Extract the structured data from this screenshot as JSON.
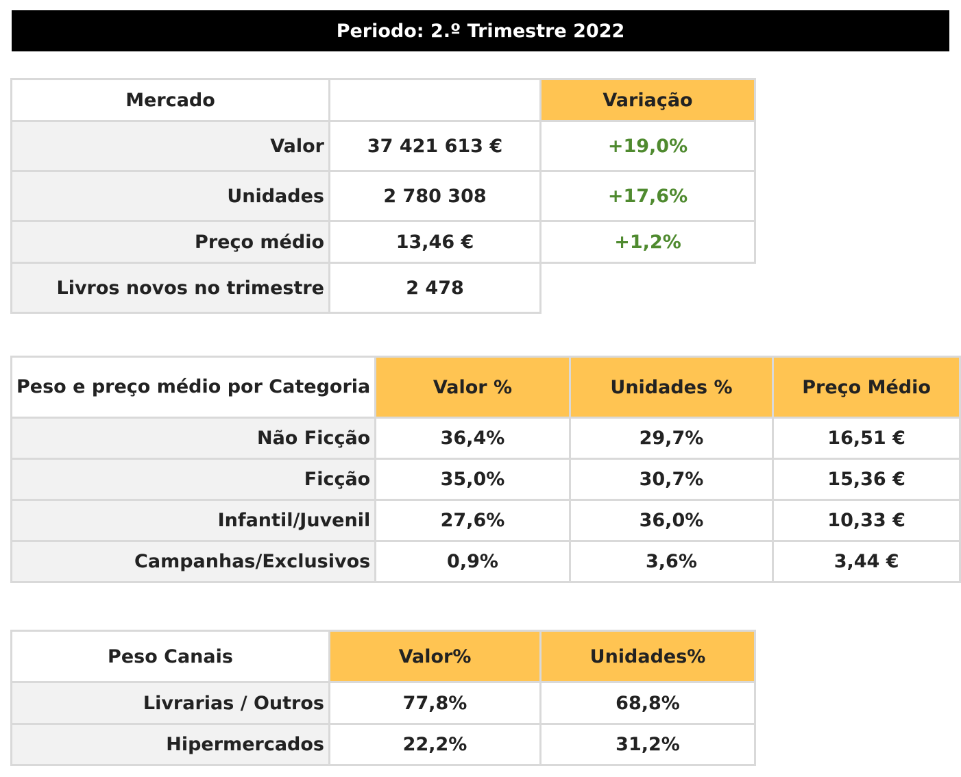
{
  "banner": {
    "title": "Periodo: 2.º Trimestre 2022"
  },
  "market": {
    "header": {
      "label": "Mercado",
      "variation": "Variação"
    },
    "rows": [
      {
        "label": "Valor",
        "value": "37 421 613 €",
        "variation": "+19,0%"
      },
      {
        "label": "Unidades",
        "value": "2 780 308",
        "variation": "+17,6%"
      },
      {
        "label": "Preço médio",
        "value": "13,46 €",
        "variation": "+1,2%"
      },
      {
        "label": "Livros novos no trimestre",
        "value": "2 478"
      }
    ]
  },
  "category": {
    "header": {
      "label": "Peso e preço médio por Categoria",
      "value_pct": "Valor %",
      "units_pct": "Unidades %",
      "avg_price": "Preço Médio"
    },
    "rows": [
      {
        "label": "Não Ficção",
        "value_pct": "36,4%",
        "units_pct": "29,7%",
        "avg_price": "16,51 €"
      },
      {
        "label": "Ficção",
        "value_pct": "35,0%",
        "units_pct": "30,7%",
        "avg_price": "15,36 €"
      },
      {
        "label": "Infantil/Juvenil",
        "value_pct": "27,6%",
        "units_pct": "36,0%",
        "avg_price": "10,33 €"
      },
      {
        "label": "Campanhas/Exclusivos",
        "value_pct": "0,9%",
        "units_pct": "3,6%",
        "avg_price": "3,44 €"
      }
    ]
  },
  "channels": {
    "header": {
      "label": "Peso Canais",
      "value_pct": "Valor%",
      "units_pct": "Unidades%"
    },
    "rows": [
      {
        "label": "Livrarias / Outros",
        "value_pct": "77,8%",
        "units_pct": "68,8%"
      },
      {
        "label": "Hipermercados",
        "value_pct": "22,2%",
        "units_pct": "31,2%"
      }
    ]
  },
  "colors": {
    "header_fill": "#ffc452",
    "label_fill": "#f2f2f2",
    "positive": "#4f8a2f",
    "banner": "#000000"
  }
}
